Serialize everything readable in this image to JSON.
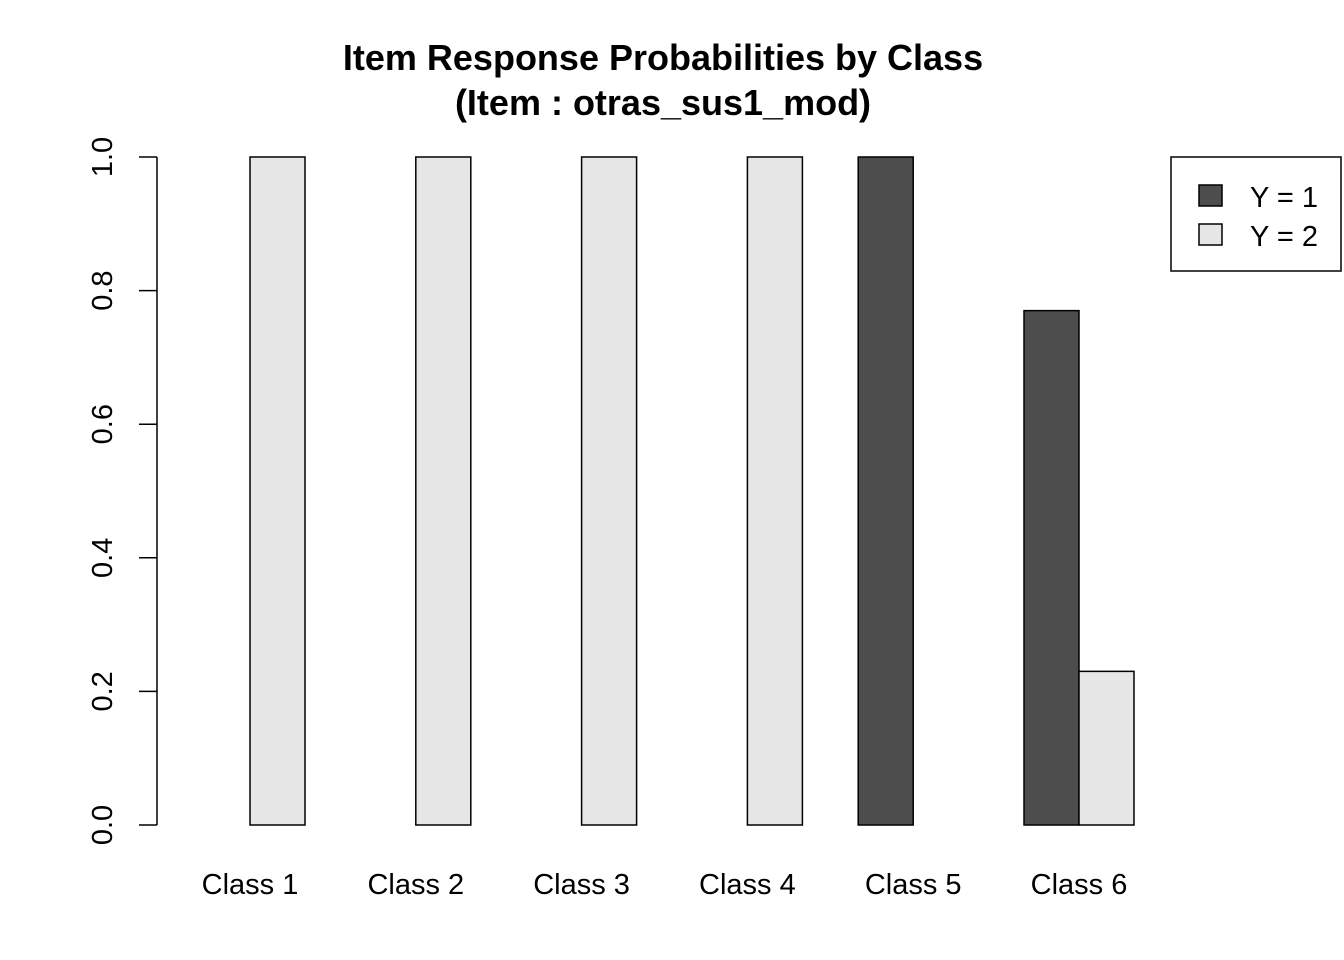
{
  "chart_data": {
    "type": "bar",
    "title": "Item Response Probabilities by Class",
    "subtitle": "(Item : otras_sus1_mod)",
    "xlabel": "",
    "ylabel": "",
    "categories": [
      "Class 1",
      "Class 2",
      "Class 3",
      "Class 4",
      "Class 5",
      "Class 6"
    ],
    "series": [
      {
        "name": "Y = 1",
        "color": "#4d4d4d",
        "values": [
          0.0,
          0.0,
          0.0,
          0.0,
          1.0,
          0.77
        ]
      },
      {
        "name": "Y = 2",
        "color": "#e6e6e6",
        "values": [
          1.0,
          1.0,
          1.0,
          1.0,
          0.0,
          0.23
        ]
      }
    ],
    "ylim": [
      0,
      1
    ],
    "yticks": [
      0.0,
      0.2,
      0.4,
      0.6,
      0.8,
      1.0
    ],
    "ytick_labels": [
      "0.0",
      "0.2",
      "0.4",
      "0.6",
      "0.8",
      "1.0"
    ],
    "grid": false,
    "legend_position": "top-right",
    "bar_outline_color": "#000000"
  }
}
